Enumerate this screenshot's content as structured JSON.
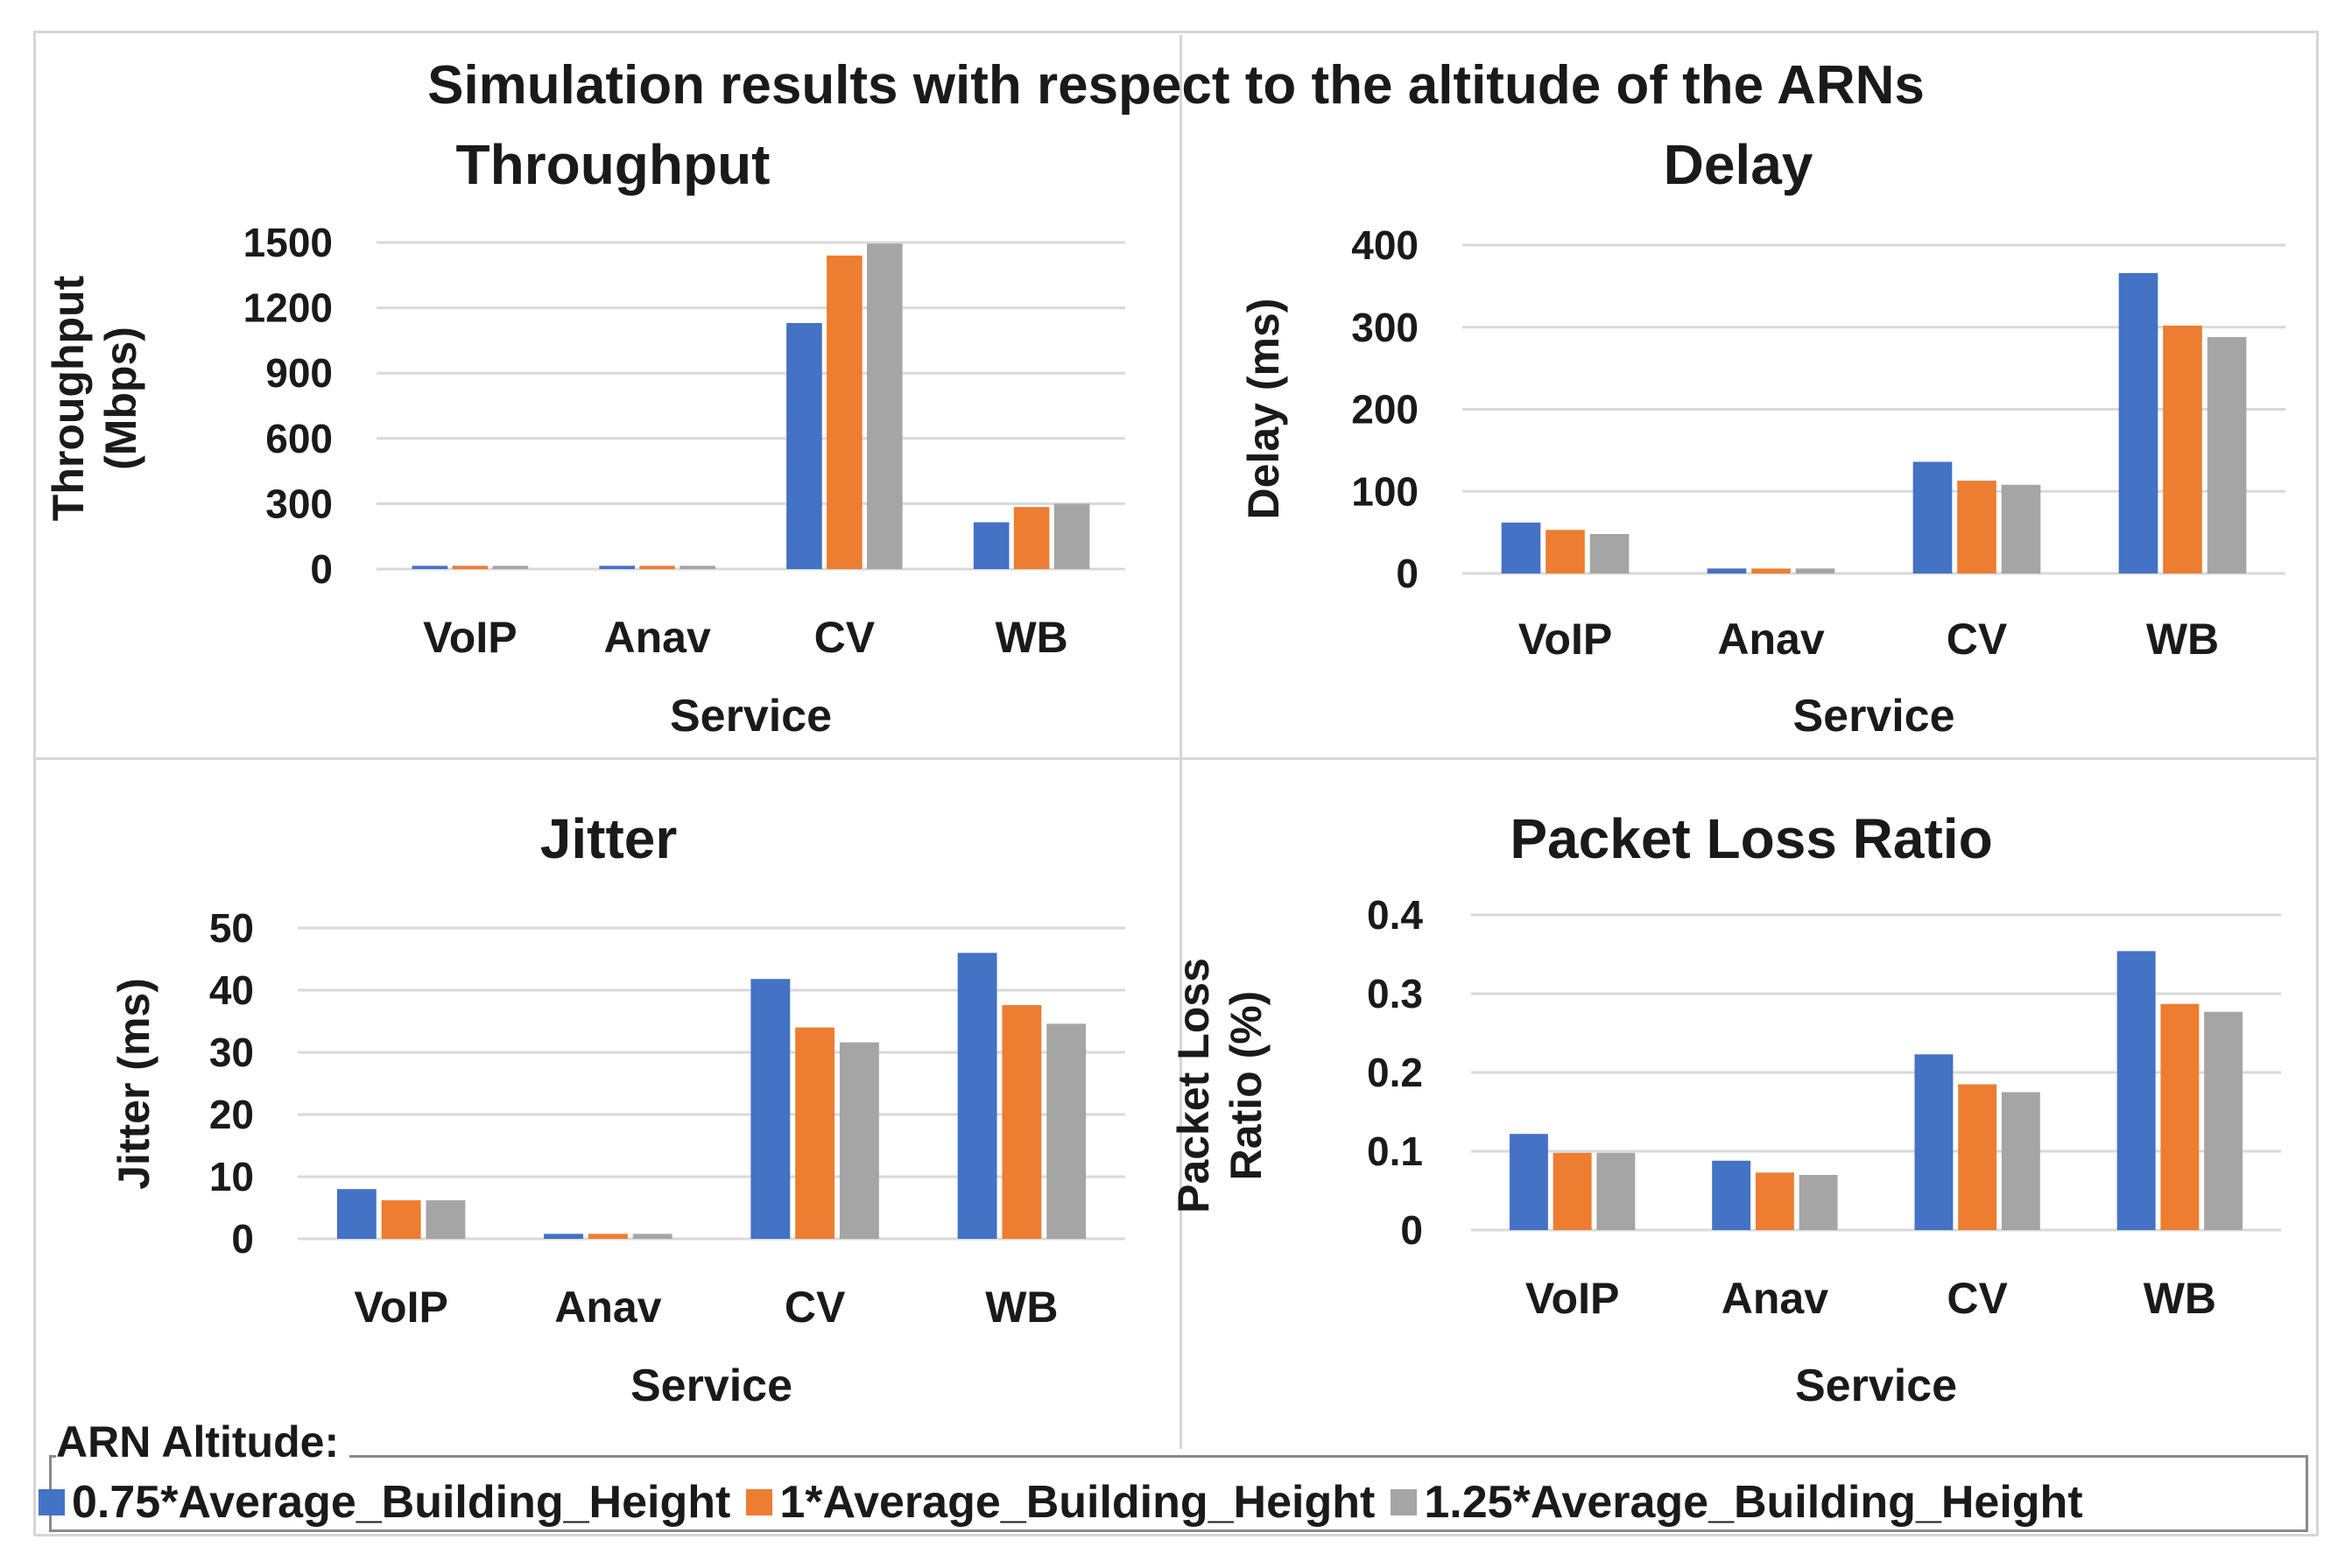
{
  "title": "Simulation results with respect to the altitude of the ARNs",
  "colors": {
    "series0": "#4472c4",
    "series1": "#ed7d31",
    "series2": "#a5a5a5",
    "grid": "#d9d9d9"
  },
  "legend": {
    "caption": "ARN Altitude:",
    "items": [
      "0.75*Average_Building_Height",
      "1*Average_Building_Height",
      "1.25*Average_Building_Height"
    ]
  },
  "chart_data": [
    {
      "type": "bar",
      "title": "Throughput",
      "xlabel": "Service",
      "ylabel": [
        "Throughput",
        "(Mbps)"
      ],
      "categories": [
        "VoIP",
        "Anav",
        "CV",
        "WB"
      ],
      "ylim": [
        0,
        1500
      ],
      "yticks": [
        0,
        300,
        600,
        900,
        1200,
        1500
      ],
      "series": [
        {
          "name": "0.75*Average_Building_Height",
          "values": [
            15,
            15,
            1130,
            215
          ]
        },
        {
          "name": "1*Average_Building_Height",
          "values": [
            15,
            15,
            1440,
            285
          ]
        },
        {
          "name": "1.25*Average_Building_Height",
          "values": [
            15,
            15,
            1495,
            300
          ]
        }
      ]
    },
    {
      "type": "bar",
      "title": "Delay",
      "xlabel": "Service",
      "ylabel": [
        "Delay (ms)"
      ],
      "categories": [
        "VoIP",
        "Anav",
        "CV",
        "WB"
      ],
      "ylim": [
        0,
        400
      ],
      "yticks": [
        0,
        100,
        200,
        300,
        400
      ],
      "series": [
        {
          "name": "0.75*Average_Building_Height",
          "values": [
            62,
            6,
            136,
            366
          ]
        },
        {
          "name": "1*Average_Building_Height",
          "values": [
            53,
            6,
            113,
            302
          ]
        },
        {
          "name": "1.25*Average_Building_Height",
          "values": [
            48,
            6,
            108,
            288
          ]
        }
      ]
    },
    {
      "type": "bar",
      "title": "Jitter",
      "xlabel": "Service",
      "ylabel": [
        "Jitter (ms)"
      ],
      "categories": [
        "VoIP",
        "Anav",
        "CV",
        "WB"
      ],
      "ylim": [
        0,
        50
      ],
      "yticks": [
        0,
        10,
        20,
        30,
        40,
        50
      ],
      "series": [
        {
          "name": "0.75*Average_Building_Height",
          "values": [
            8,
            0.8,
            41.8,
            46
          ]
        },
        {
          "name": "1*Average_Building_Height",
          "values": [
            6.2,
            0.8,
            34,
            37.6
          ]
        },
        {
          "name": "1.25*Average_Building_Height",
          "values": [
            6.2,
            0.8,
            31.6,
            34.6
          ]
        }
      ]
    },
    {
      "type": "bar",
      "title": "Packet Loss Ratio",
      "xlabel": "Service",
      "ylabel": [
        "Packet Loss",
        "Ratio (%)"
      ],
      "categories": [
        "VoIP",
        "Anav",
        "CV",
        "WB"
      ],
      "ylim": [
        0,
        0.4
      ],
      "yticks": [
        "0",
        "0.1",
        "0.2",
        "0.3",
        "0.4"
      ],
      "series": [
        {
          "name": "0.75*Average_Building_Height",
          "values": [
            0.122,
            0.088,
            0.223,
            0.354
          ]
        },
        {
          "name": "1*Average_Building_Height",
          "values": [
            0.098,
            0.073,
            0.185,
            0.287
          ]
        },
        {
          "name": "1.25*Average_Building_Height",
          "values": [
            0.098,
            0.07,
            0.175,
            0.277
          ]
        }
      ]
    }
  ]
}
